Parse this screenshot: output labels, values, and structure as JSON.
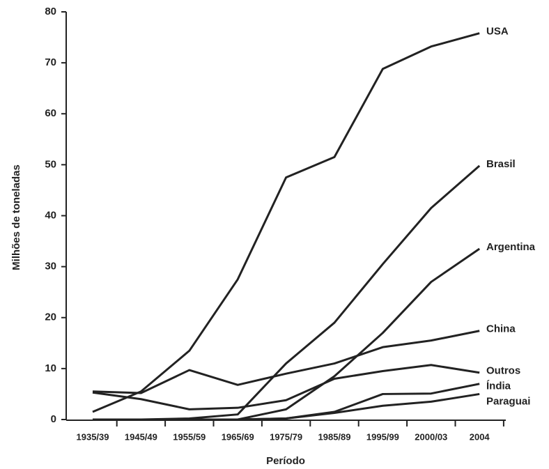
{
  "chart_data": {
    "type": "line",
    "x_label": "Período",
    "y_label": "Milhões de toneladas",
    "categories": [
      "1935/39",
      "1945/49",
      "1955/59",
      "1965/69",
      "1975/79",
      "1985/89",
      "1995/99",
      "2000/03",
      "2004"
    ],
    "ylim": [
      0,
      80
    ],
    "yticks": [
      0,
      10,
      20,
      30,
      40,
      50,
      60,
      70,
      80
    ],
    "series": [
      {
        "name": "USA",
        "color": "#222222",
        "values": [
          1.5,
          5.5,
          13.5,
          27.5,
          47.5,
          51.5,
          68.8,
          73.2,
          75.8
        ]
      },
      {
        "name": "Brasil",
        "color": "#222222",
        "values": [
          0,
          0,
          0.2,
          1,
          11,
          19,
          30.5,
          41.5,
          49.8
        ]
      },
      {
        "name": "Argentina",
        "color": "#222222",
        "values": [
          0,
          0,
          0,
          0,
          2,
          8.5,
          17,
          27,
          33.5
        ]
      },
      {
        "name": "China",
        "color": "#222222",
        "values": [
          5.5,
          5.2,
          9.7,
          6.8,
          9,
          11,
          14.2,
          15.5,
          17.4
        ]
      },
      {
        "name": "Outros",
        "color": "#222222",
        "values": [
          5.3,
          4,
          2,
          2.3,
          3.8,
          8,
          9.5,
          10.7,
          9.2
        ]
      },
      {
        "name": "Índia",
        "color": "#222222",
        "values": [
          0,
          0,
          0,
          0,
          0.2,
          1.5,
          5,
          5.1,
          7
        ]
      },
      {
        "name": "Paraguai",
        "color": "#222222",
        "values": [
          0,
          0,
          0,
          0,
          0.2,
          1.3,
          2.7,
          3.5,
          5
        ]
      }
    ]
  }
}
